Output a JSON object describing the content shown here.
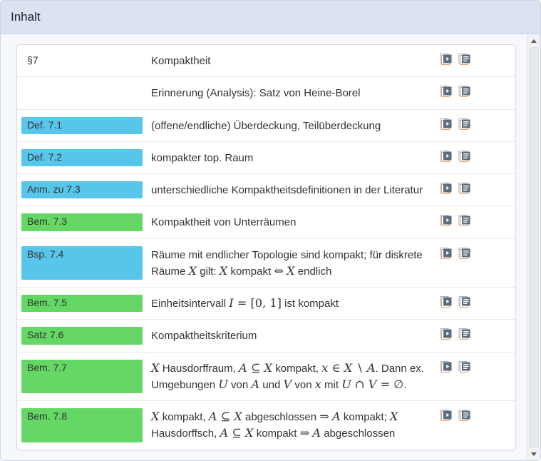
{
  "header": {
    "title": "Inhalt"
  },
  "colors": {
    "header_background": "#dbe2f1",
    "badge_cyan": "#57c6ea",
    "badge_green": "#64d765",
    "text": "#333333"
  },
  "list": {
    "row_icons": [
      {
        "name": "video-pages-icon",
        "meaning": "video recording"
      },
      {
        "name": "notes-pages-icon",
        "meaning": "lecture notes"
      }
    ],
    "items": [
      {
        "label": "§7",
        "badge": "none",
        "description": "Kompaktheit"
      },
      {
        "label": "",
        "badge": "none",
        "description": "Erinnerung (Analysis): Satz von Heine-Borel"
      },
      {
        "label": "Def. 7.1",
        "badge": "cyan",
        "description": "(offene/endliche) Überdeckung, Teilüberdeckung"
      },
      {
        "label": "Def. 7.2",
        "badge": "cyan",
        "description": "kompakter top. Raum"
      },
      {
        "label": "Anm. zu 7.3",
        "badge": "cyan",
        "description": "unterschiedliche Kompaktheitsdefinitionen in der Literatur"
      },
      {
        "label": "Bem. 7.3",
        "badge": "green",
        "description": "Kompaktheit von Unterräumen"
      },
      {
        "label": "Bsp. 7.4",
        "badge": "cyan",
        "description": "Räume mit endlicher Topologie sind kompakt; für diskrete Räume $X$ gilt: $X$ kompakt $⇔$ $X$ endlich"
      },
      {
        "label": "Bem. 7.5",
        "badge": "green",
        "description": "Einheitsintervall $I = [0, 1]$ ist kompakt"
      },
      {
        "label": "Satz 7.6",
        "badge": "green",
        "description": "Kompaktheitskriterium"
      },
      {
        "label": "Bem. 7.7",
        "badge": "green",
        "description": "$X$ Hausdorffraum, $A ⊆ X$ kompakt, $x ∈ X ∖ A$. Dann ex. Umgebungen $U$ von $A$ und $V$ von $x$ mit $U ∩ V = ∅$."
      },
      {
        "label": "Bem. 7.8",
        "badge": "green",
        "description": "$X$ kompakt, $A ⊆ X$ abgeschlossen $⇒$ $A$ kompakt; $X$ Hausdorffsch, $A ⊆ X$ kompakt $⇒$ $A$ abgeschlossen"
      }
    ]
  }
}
